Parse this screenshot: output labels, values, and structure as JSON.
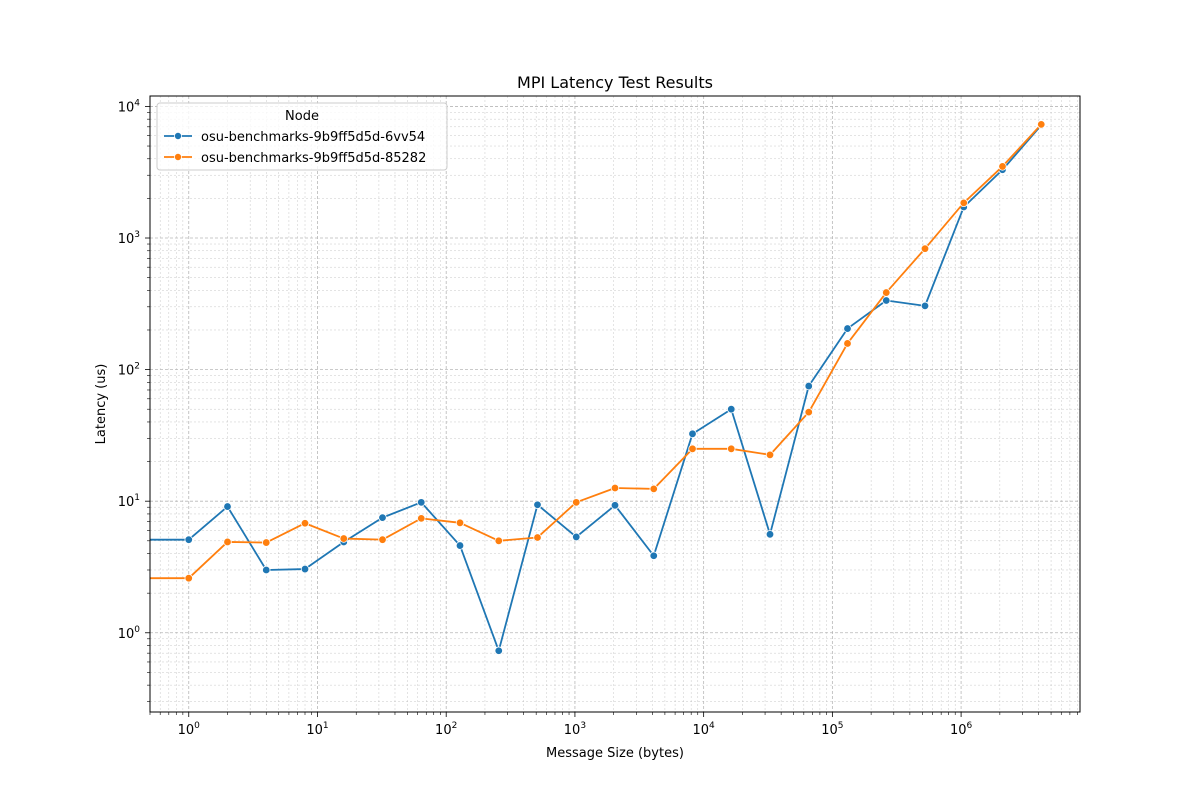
{
  "chart_data": {
    "type": "line",
    "title": "MPI Latency Test Results",
    "xlabel": "Message Size (bytes)",
    "ylabel": "Latency (us)",
    "xscale": "log",
    "yscale": "log",
    "xlim": [
      0.5,
      8388608
    ],
    "ylim": [
      0.25,
      12000
    ],
    "grid": true,
    "legend": {
      "title": "Node",
      "placement": "top-left"
    },
    "x": [
      0,
      1,
      2,
      4,
      8,
      16,
      32,
      64,
      128,
      256,
      512,
      1024,
      2048,
      4096,
      8192,
      16384,
      32768,
      65536,
      131072,
      262144,
      524288,
      1048576,
      2097152,
      4194304
    ],
    "x_tick_labels": [
      {
        "base": "10",
        "exp": "0",
        "value": 1
      },
      {
        "base": "10",
        "exp": "1",
        "value": 10
      },
      {
        "base": "10",
        "exp": "2",
        "value": 100
      },
      {
        "base": "10",
        "exp": "3",
        "value": 1000
      },
      {
        "base": "10",
        "exp": "4",
        "value": 10000
      },
      {
        "base": "10",
        "exp": "5",
        "value": 100000
      },
      {
        "base": "10",
        "exp": "6",
        "value": 1000000
      }
    ],
    "y_tick_labels": [
      {
        "base": "10",
        "exp": "0",
        "value": 1
      },
      {
        "base": "10",
        "exp": "1",
        "value": 10
      },
      {
        "base": "10",
        "exp": "2",
        "value": 100
      },
      {
        "base": "10",
        "exp": "3",
        "value": 1000
      },
      {
        "base": "10",
        "exp": "4",
        "value": 10000
      }
    ],
    "series": [
      {
        "name": "osu-benchmarks-9b9ff5d5d-6vv54",
        "color": "#1f77b4",
        "values": [
          5.1,
          5.1,
          9.1,
          3.0,
          3.05,
          4.9,
          7.5,
          9.8,
          4.6,
          0.73,
          9.4,
          5.35,
          9.3,
          3.85,
          32.5,
          50,
          5.6,
          75,
          205,
          335,
          305,
          1720,
          3300,
          7200
        ]
      },
      {
        "name": "osu-benchmarks-9b9ff5d5d-85282",
        "color": "#ff7f0e",
        "values": [
          2.6,
          2.6,
          4.9,
          4.85,
          6.8,
          5.2,
          5.1,
          7.4,
          6.85,
          5.0,
          5.3,
          9.8,
          12.6,
          12.4,
          25,
          25,
          22.5,
          47.5,
          158,
          385,
          830,
          1850,
          3500,
          7300
        ]
      }
    ]
  }
}
